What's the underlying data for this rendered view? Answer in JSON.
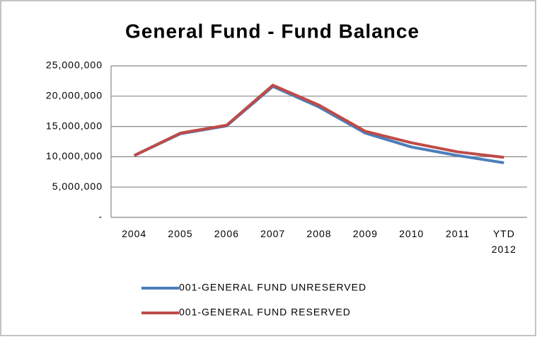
{
  "chart_data": {
    "type": "line",
    "title": "General Fund - Fund Balance",
    "categories": [
      "2004",
      "2005",
      "2006",
      "2007",
      "2008",
      "2009",
      "2010",
      "2011",
      "YTD 2012"
    ],
    "series": [
      {
        "name": "001-GENERAL FUND UNRESERVED",
        "color": "#4a7ebb",
        "values": [
          10200000,
          13800000,
          15100000,
          21600000,
          18200000,
          13900000,
          11600000,
          10200000,
          9000000
        ]
      },
      {
        "name": "001-GENERAL FUND RESERVED",
        "color": "#be4b48",
        "values": [
          10200000,
          13900000,
          15200000,
          21800000,
          18500000,
          14200000,
          12300000,
          10800000,
          9900000
        ]
      }
    ],
    "ylim": [
      0,
      25000000
    ],
    "yticks": [
      {
        "value": 0,
        "label": "-"
      },
      {
        "value": 5000000,
        "label": "5,000,000"
      },
      {
        "value": 10000000,
        "label": "10,000,000"
      },
      {
        "value": 15000000,
        "label": "15,000,000"
      },
      {
        "value": 20000000,
        "label": "20,000,000"
      },
      {
        "value": 25000000,
        "label": "25,000,000"
      }
    ],
    "grid": true
  }
}
